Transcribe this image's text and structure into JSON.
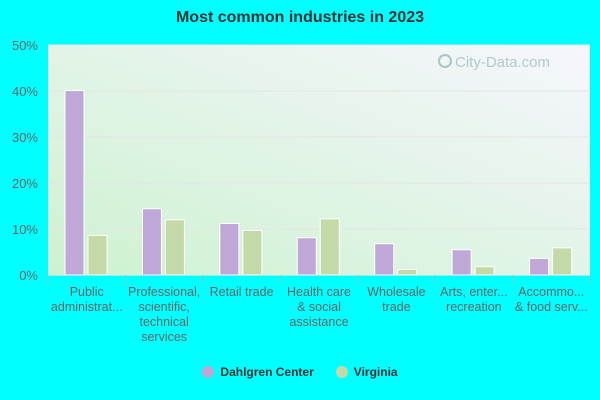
{
  "chart_data": {
    "type": "bar",
    "title": "Most common industries in 2023",
    "categories": [
      [
        "Public",
        "administrat..."
      ],
      [
        "Professional,",
        "scientific,",
        "technical",
        "services"
      ],
      [
        "Retail trade"
      ],
      [
        "Health care",
        "& social",
        "assistance"
      ],
      [
        "Wholesale",
        "trade"
      ],
      [
        "Arts, enter...",
        "recreation"
      ],
      [
        "Accommo...",
        "& food serv..."
      ]
    ],
    "series": [
      {
        "name": "Dahlgren Center",
        "color": "#bfa8d8",
        "values": [
          40.1,
          14.4,
          11.2,
          8.1,
          6.8,
          5.5,
          3.6
        ]
      },
      {
        "name": "Virginia",
        "color": "#c4d9a8",
        "values": [
          8.6,
          12.0,
          9.7,
          12.2,
          1.2,
          1.8,
          5.9
        ]
      }
    ],
    "ylim": [
      0,
      50
    ],
    "yticks": [
      "0%",
      "10%",
      "20%",
      "30%",
      "40%",
      "50%"
    ],
    "grid": true,
    "legend": "bottom",
    "watermark": "City-Data.com"
  }
}
